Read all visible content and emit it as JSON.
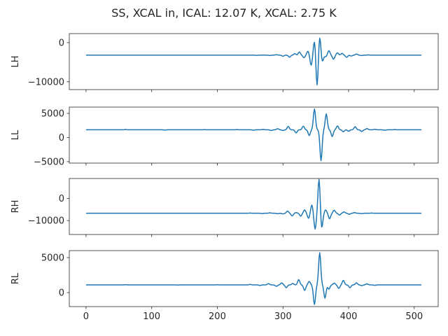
{
  "figure": {
    "title": "SS, XCAL in, ICAL: 12.07 K, XCAL: 2.75 K"
  },
  "style": {
    "line_color": "#1f77b4",
    "axis_color": "#262626"
  },
  "chart_data": [
    {
      "type": "line",
      "ylabel": "LH",
      "xlim": [
        -25.5,
        536.5
      ],
      "ylim": [
        -12000,
        2300
      ],
      "yticks": [
        0,
        -10000
      ],
      "ytick_labels": [
        "0",
        "−10000"
      ],
      "show_xtick_labels": false,
      "series": [
        {
          "baseline": -3200,
          "x_min": 0,
          "x_max": 511,
          "peaks": [
            [
              260,
              -60
            ],
            [
              280,
              -90
            ],
            [
              290,
              120
            ],
            [
              300,
              -280
            ],
            [
              310,
              -520
            ],
            [
              318,
              400
            ],
            [
              325,
              800
            ],
            [
              332,
              -650
            ],
            [
              338,
              1000
            ],
            [
              343,
              -2600
            ],
            [
              348,
              3700
            ],
            [
              352,
              -8000
            ],
            [
              356,
              4800
            ],
            [
              360,
              -1700
            ],
            [
              365,
              -400
            ],
            [
              370,
              1150
            ],
            [
              377,
              -1050
            ],
            [
              383,
              580
            ],
            [
              390,
              460
            ],
            [
              397,
              -560
            ],
            [
              404,
              -230
            ],
            [
              412,
              280
            ],
            [
              420,
              -110
            ],
            [
              430,
              70
            ]
          ]
        }
      ]
    },
    {
      "type": "line",
      "ylabel": "LL",
      "xlim": [
        -25.5,
        536.5
      ],
      "ylim": [
        -5300,
        6300
      ],
      "yticks": [
        5000,
        0,
        -5000
      ],
      "ytick_labels": [
        "5000",
        "0",
        "−5000"
      ],
      "show_xtick_labels": false,
      "series": [
        {
          "baseline": 1600,
          "x_min": 0,
          "x_max": 511,
          "peaks": [
            [
              60,
              70
            ],
            [
              120,
              -50
            ],
            [
              180,
              40
            ],
            [
              230,
              60
            ],
            [
              255,
              -80
            ],
            [
              270,
              90
            ],
            [
              282,
              -150
            ],
            [
              292,
              230
            ],
            [
              300,
              -150
            ],
            [
              308,
              700
            ],
            [
              320,
              -650
            ],
            [
              331,
              750
            ],
            [
              340,
              -1200
            ],
            [
              348,
              4300
            ],
            [
              358,
              -6400
            ],
            [
              366,
              3300
            ],
            [
              375,
              -1400
            ],
            [
              383,
              800
            ],
            [
              392,
              -400
            ],
            [
              400,
              -300
            ],
            [
              410,
              650
            ],
            [
              420,
              -350
            ],
            [
              428,
              250
            ],
            [
              440,
              120
            ],
            [
              455,
              -90
            ],
            [
              470,
              60
            ]
          ]
        }
      ]
    },
    {
      "type": "line",
      "ylabel": "RH",
      "xlim": [
        -25.5,
        536.5
      ],
      "ylim": [
        -16300,
        9000
      ],
      "yticks": [
        0,
        -10000
      ],
      "ytick_labels": [
        "0",
        "−10000"
      ],
      "show_xtick_labels": false,
      "series": [
        {
          "baseline": -6700,
          "x_min": 0,
          "x_max": 511,
          "peaks": [
            [
              250,
              80
            ],
            [
              268,
              -120
            ],
            [
              280,
              220
            ],
            [
              292,
              -180
            ],
            [
              300,
              -300
            ],
            [
              307,
              1000
            ],
            [
              314,
              -1200
            ],
            [
              320,
              300
            ],
            [
              327,
              -1300
            ],
            [
              333,
              1500
            ],
            [
              339,
              -2300
            ],
            [
              344,
              3800
            ],
            [
              349,
              -7200
            ],
            [
              355,
              15600
            ],
            [
              359,
              -7000
            ],
            [
              365,
              1500
            ],
            [
              371,
              -2500
            ],
            [
              378,
              1400
            ],
            [
              386,
              -800
            ],
            [
              393,
              600
            ],
            [
              401,
              -500
            ],
            [
              409,
              300
            ],
            [
              420,
              -150
            ],
            [
              435,
              80
            ]
          ]
        }
      ]
    },
    {
      "type": "line",
      "ylabel": "RL",
      "xlim": [
        -25.5,
        536.5
      ],
      "ylim": [
        -2000,
        6000
      ],
      "yticks": [
        5000,
        0
      ],
      "ytick_labels": [
        "5000",
        "0"
      ],
      "show_xtick_labels": true,
      "xticks": [
        0,
        100,
        200,
        300,
        400,
        500
      ],
      "xtick_labels": [
        "0",
        "100",
        "200",
        "300",
        "400",
        "500"
      ],
      "series": [
        {
          "baseline": 1100,
          "x_min": 0,
          "x_max": 511,
          "peaks": [
            [
              60,
              30
            ],
            [
              140,
              -20
            ],
            [
              200,
              30
            ],
            [
              250,
              70
            ],
            [
              265,
              -80
            ],
            [
              278,
              180
            ],
            [
              290,
              -200
            ],
            [
              298,
              280
            ],
            [
              305,
              -400
            ],
            [
              315,
              200
            ],
            [
              324,
              750
            ],
            [
              333,
              -800
            ],
            [
              340,
              500
            ],
            [
              348,
              -2800
            ],
            [
              356,
              4600
            ],
            [
              364,
              -1900
            ],
            [
              370,
              -600
            ],
            [
              378,
              250
            ],
            [
              385,
              -500
            ],
            [
              392,
              650
            ],
            [
              402,
              -400
            ],
            [
              412,
              300
            ],
            [
              420,
              -100
            ],
            [
              428,
              150
            ],
            [
              440,
              -60
            ]
          ]
        }
      ]
    }
  ]
}
